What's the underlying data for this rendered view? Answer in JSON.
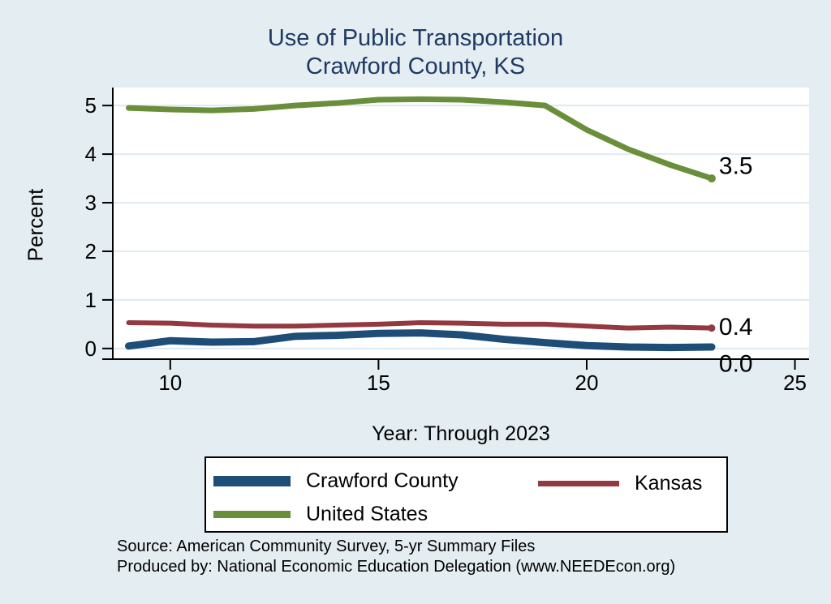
{
  "title": {
    "line1": "Use of Public Transportation",
    "line2": "Crawford County, KS"
  },
  "colors": {
    "background": "#e4edf2",
    "plot_background": "#ffffff",
    "title_text": "#1f3a63",
    "axis": "#000000",
    "gridline": "#dfeaf1",
    "tick_label": "#000000",
    "legend_border": "#000000"
  },
  "chart_data": {
    "type": "line",
    "title": "Use of Public Transportation",
    "subtitle": "Crawford County, KS",
    "xlabel": "Year: Through 2023",
    "ylabel": "Percent",
    "years": [
      2009,
      2010,
      2011,
      2012,
      2013,
      2014,
      2015,
      2016,
      2017,
      2018,
      2019,
      2020,
      2021,
      2022,
      2023
    ],
    "x": [
      9,
      10,
      11,
      12,
      13,
      14,
      15,
      16,
      17,
      18,
      19,
      20,
      21,
      22,
      23
    ],
    "xticks": [
      "10",
      "15",
      "20",
      "25"
    ],
    "xtick_values": [
      10,
      15,
      20,
      25
    ],
    "yticks": [
      "0",
      "1",
      "2",
      "3",
      "4",
      "5"
    ],
    "ytick_values": [
      0,
      1,
      2,
      3,
      4,
      5
    ],
    "xlim": [
      8.62,
      25.34
    ],
    "ylim": [
      -0.22,
      5.37
    ],
    "grid": true,
    "legend_position": "bottom",
    "series": [
      {
        "name": "Crawford County",
        "color": "#1e4d78",
        "end_label": "0.0",
        "values": [
          0.05,
          0.16,
          0.13,
          0.14,
          0.25,
          0.27,
          0.31,
          0.32,
          0.28,
          0.19,
          0.12,
          0.06,
          0.03,
          0.02,
          0.03
        ]
      },
      {
        "name": "Kansas",
        "color": "#94393f",
        "end_label": "0.4",
        "values": [
          0.53,
          0.52,
          0.48,
          0.46,
          0.46,
          0.48,
          0.5,
          0.53,
          0.52,
          0.5,
          0.5,
          0.46,
          0.42,
          0.44,
          0.42
        ]
      },
      {
        "name": "United States",
        "color": "#6a8f3b",
        "end_label": "3.5",
        "values": [
          4.95,
          4.92,
          4.9,
          4.93,
          5.0,
          5.05,
          5.12,
          5.13,
          5.12,
          5.07,
          5.0,
          4.5,
          4.1,
          3.78,
          3.5
        ]
      }
    ]
  },
  "footer": {
    "line1": "Source: American Community Survey, 5-yr Summary Files",
    "line2": "Produced by: National Economic Education Delegation (www.NEEDEcon.org)"
  }
}
